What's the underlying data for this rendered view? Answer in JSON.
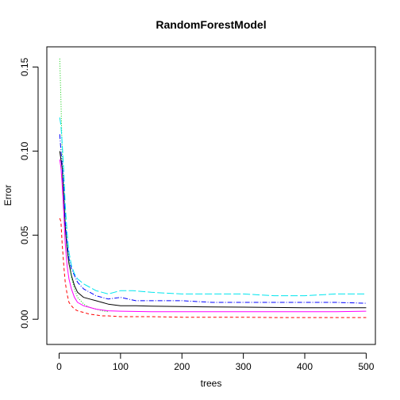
{
  "chart_data": {
    "type": "line",
    "title": "RandomForestModel",
    "xlabel": "trees",
    "ylabel": "Error",
    "xlim": [
      -20,
      515
    ],
    "ylim": [
      -0.015,
      0.162
    ],
    "xticks": [
      0,
      100,
      200,
      300,
      400,
      500
    ],
    "xtick_labels": [
      "0",
      "100",
      "200",
      "300",
      "400",
      "500"
    ],
    "yticks": [
      0.0,
      0.05,
      0.1,
      0.15
    ],
    "ytick_labels": [
      "0.00",
      "0.05",
      "0.10",
      "0.15"
    ],
    "grid": false,
    "legend": "none",
    "series": [
      {
        "color": "#000000",
        "dash": "",
        "x": [
          1,
          3,
          5,
          8,
          10,
          13,
          16,
          20,
          25,
          30,
          40,
          50,
          60,
          70,
          80,
          90,
          100,
          125,
          150,
          200,
          250,
          300,
          350,
          400,
          450,
          500
        ],
        "y": [
          0.1,
          0.095,
          0.09,
          0.07,
          0.055,
          0.042,
          0.033,
          0.026,
          0.02,
          0.016,
          0.013,
          0.012,
          0.011,
          0.01,
          0.009,
          0.0085,
          0.008,
          0.008,
          0.0078,
          0.0075,
          0.0073,
          0.0072,
          0.007,
          0.0068,
          0.0068,
          0.0068
        ]
      },
      {
        "color": "#ff0000",
        "dash": "4,3",
        "x": [
          1,
          3,
          5,
          8,
          10,
          13,
          16,
          20,
          25,
          30,
          40,
          50,
          60,
          70,
          80,
          100,
          150,
          200,
          250,
          300,
          350,
          400,
          450,
          500
        ],
        "y": [
          0.06,
          0.058,
          0.045,
          0.03,
          0.022,
          0.015,
          0.01,
          0.008,
          0.006,
          0.005,
          0.004,
          0.003,
          0.0025,
          0.002,
          0.002,
          0.0015,
          0.0015,
          0.0012,
          0.0012,
          0.0012,
          0.001,
          0.001,
          0.001,
          0.001
        ]
      },
      {
        "color": "#00cc00",
        "dash": "1,2",
        "x": [
          1,
          3,
          5,
          8,
          10,
          13,
          16,
          20,
          25,
          30,
          40,
          50,
          60,
          70,
          80
        ],
        "y": [
          0.155,
          0.13,
          0.1,
          0.075,
          0.06,
          0.045,
          0.035,
          0.025,
          0.018,
          0.013,
          0.009,
          0.007,
          0.006,
          0.005,
          0.0045
        ]
      },
      {
        "color": "#0000ff",
        "dash": "6,2,1,2",
        "x": [
          1,
          3,
          5,
          8,
          10,
          13,
          16,
          20,
          25,
          30,
          40,
          50,
          60,
          70,
          80,
          100,
          125,
          150,
          200,
          250,
          300,
          350,
          400,
          450,
          500
        ],
        "y": [
          0.11,
          0.1,
          0.092,
          0.075,
          0.058,
          0.045,
          0.036,
          0.03,
          0.026,
          0.022,
          0.018,
          0.016,
          0.014,
          0.013,
          0.012,
          0.013,
          0.011,
          0.011,
          0.011,
          0.01,
          0.01,
          0.01,
          0.01,
          0.01,
          0.0095
        ]
      },
      {
        "color": "#00e5ee",
        "dash": "9,3",
        "x": [
          1,
          3,
          5,
          8,
          10,
          13,
          16,
          20,
          25,
          30,
          40,
          50,
          60,
          70,
          80,
          90,
          100,
          120,
          150,
          200,
          250,
          300,
          350,
          400,
          450,
          500
        ],
        "y": [
          0.12,
          0.115,
          0.105,
          0.085,
          0.068,
          0.052,
          0.04,
          0.032,
          0.027,
          0.024,
          0.021,
          0.019,
          0.017,
          0.016,
          0.015,
          0.016,
          0.017,
          0.017,
          0.016,
          0.015,
          0.015,
          0.015,
          0.014,
          0.014,
          0.015,
          0.015
        ]
      },
      {
        "color": "#ff00ff",
        "dash": "",
        "x": [
          1,
          3,
          5,
          8,
          10,
          13,
          16,
          20,
          25,
          30,
          40,
          50,
          60,
          70,
          80,
          100,
          150,
          200,
          250,
          300,
          350,
          400,
          450,
          500
        ],
        "y": [
          0.095,
          0.09,
          0.08,
          0.06,
          0.045,
          0.032,
          0.024,
          0.018,
          0.013,
          0.01,
          0.008,
          0.007,
          0.006,
          0.0055,
          0.005,
          0.0048,
          0.0045,
          0.0045,
          0.0045,
          0.0045,
          0.0045,
          0.0045,
          0.0045,
          0.0048
        ]
      }
    ]
  }
}
